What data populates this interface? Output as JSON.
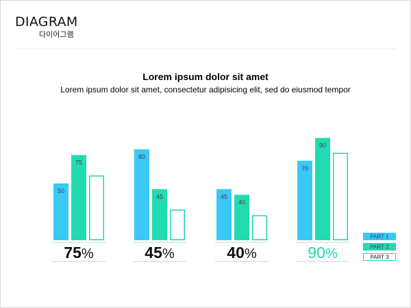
{
  "header": {
    "title": "DIAGRAM",
    "subtitle": "다이어그램"
  },
  "main": {
    "heading": "Lorem ipsum dolor sit amet",
    "subheading": "Lorem ipsum dolor sit amet, consectetur adipisicing elit, sed do eiusmod tempor"
  },
  "colors": {
    "part1": "#3ac8f6",
    "part2": "#22dbb0",
    "part3": "#22d3b4",
    "highlight": "#22d3b4",
    "dark": "#111111",
    "rule": "#cfcfcf"
  },
  "chart_data": {
    "type": "bar",
    "categories": [
      "75%",
      "45%",
      "40%",
      "90%"
    ],
    "series": [
      {
        "name": "PART 1",
        "values": [
          50,
          80,
          45,
          70
        ]
      },
      {
        "name": "PART 2",
        "values": [
          75,
          45,
          40,
          90
        ]
      },
      {
        "name": "PART 3",
        "values": [
          57,
          27,
          22,
          77
        ]
      }
    ],
    "value_labels": {
      "PART 1": [
        "50",
        "80",
        "45",
        "70"
      ],
      "PART 2": [
        "75",
        "45",
        "40",
        "90"
      ],
      "PART 3": [
        "",
        "",
        "",
        ""
      ]
    },
    "group_totals": [
      {
        "number": "75",
        "unit": "%",
        "highlight": false
      },
      {
        "number": "45",
        "unit": "%",
        "highlight": false
      },
      {
        "number": "40",
        "unit": "%",
        "highlight": false
      },
      {
        "number": "90",
        "unit": "%",
        "highlight": true
      }
    ],
    "ylim": [
      0,
      100
    ],
    "grid": false,
    "legend_position": "bottom-right",
    "xlabel": "",
    "ylabel": ""
  }
}
